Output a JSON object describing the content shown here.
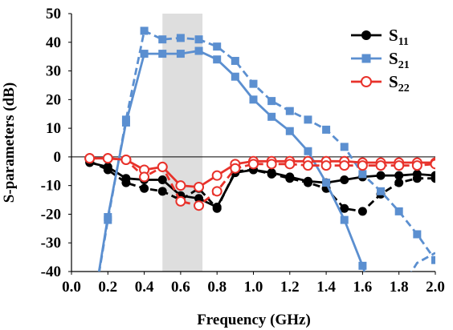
{
  "chart_data": {
    "type": "line",
    "xlabel": "Frequency (GHz)",
    "ylabel": "S-parameters (dB)",
    "xlim": [
      0.0,
      2.0
    ],
    "ylim": [
      -40,
      50
    ],
    "x_ticks": [
      "0.0",
      "0.2",
      "0.4",
      "0.6",
      "0.8",
      "1.0",
      "1.2",
      "1.4",
      "1.6",
      "1.8",
      "2.0"
    ],
    "y_ticks": [
      "-40",
      "-30",
      "-20",
      "-10",
      "0",
      "10",
      "20",
      "30",
      "40",
      "50"
    ],
    "legend_position": "top-right",
    "shaded_band": {
      "x_start": 0.5,
      "x_end": 0.72
    },
    "series": [
      {
        "name": "S11",
        "legend_main": "S",
        "legend_sub": "11",
        "color": "#000000",
        "marker": "filled-circle",
        "solid": {
          "x": [
            0.1,
            0.2,
            0.3,
            0.4,
            0.5,
            0.6,
            0.7,
            0.8,
            0.9,
            1.0,
            1.1,
            1.2,
            1.3,
            1.4,
            1.5,
            1.6,
            1.7,
            1.8,
            1.9,
            2.0
          ],
          "y": [
            -2.0,
            -3.5,
            -7.5,
            -8.0,
            -8.0,
            -13.5,
            -14.5,
            -17.5,
            -5.5,
            -4.5,
            -5.5,
            -7.0,
            -8.5,
            -9.0,
            -8.0,
            -7.0,
            -6.5,
            -6.5,
            -6.0,
            -6.5
          ]
        },
        "dashed": {
          "x": [
            0.1,
            0.2,
            0.3,
            0.4,
            0.5,
            0.6,
            0.7,
            0.8,
            0.9,
            1.0,
            1.1,
            1.2,
            1.3,
            1.4,
            1.5,
            1.6,
            1.7,
            1.8,
            1.9,
            2.0
          ],
          "y": [
            -1.5,
            -4.5,
            -9.0,
            -11.0,
            -12.0,
            -15.0,
            -11.0,
            -18.0,
            -5.0,
            -4.5,
            -6.0,
            -7.5,
            -9.0,
            -11.0,
            -18.0,
            -19.0,
            -13.0,
            -9.0,
            -7.5,
            -7.5
          ]
        }
      },
      {
        "name": "S21",
        "legend_main": "S",
        "legend_sub": "21",
        "color": "#5b8fd0",
        "marker": "filled-square",
        "solid": {
          "x": [
            0.1,
            0.2,
            0.3,
            0.4,
            0.5,
            0.6,
            0.7,
            0.8,
            0.9,
            1.0,
            1.1,
            1.2,
            1.3,
            1.4,
            1.5,
            1.6,
            1.65
          ],
          "y": [
            -60,
            -21,
            12,
            36,
            36,
            36,
            37,
            34,
            28,
            20,
            14,
            9,
            2,
            -9,
            -22,
            -38,
            -48
          ]
        },
        "dashed": {
          "x": [
            0.1,
            0.2,
            0.3,
            0.4,
            0.5,
            0.6,
            0.7,
            0.8,
            0.9,
            1.0,
            1.1,
            1.2,
            1.3,
            1.4,
            1.5,
            1.6,
            1.7,
            1.8,
            1.9,
            2.0
          ],
          "y": [
            -60,
            -22,
            13,
            44,
            41,
            41.5,
            41,
            38.5,
            33.5,
            25.5,
            19.5,
            16,
            13,
            9.5,
            3.5,
            -6,
            -12,
            -19,
            -27,
            -36
          ]
        },
        "extra_segment": {
          "x": [
            1.85,
            1.9,
            2.0
          ],
          "y": [
            -42,
            -37,
            -33.5
          ]
        }
      },
      {
        "name": "S22",
        "legend_main": "S",
        "legend_sub": "22",
        "color": "#e8322b",
        "marker": "open-circle",
        "solid": {
          "x": [
            0.1,
            0.2,
            0.3,
            0.4,
            0.5,
            0.6,
            0.7,
            0.8,
            0.9,
            1.0,
            1.1,
            1.2,
            1.3,
            1.4,
            1.5,
            1.6,
            1.7,
            1.8,
            1.9,
            2.0
          ],
          "y": [
            -0.5,
            -0.5,
            -1.0,
            -4.5,
            -3.5,
            -10.0,
            -10.5,
            -6.5,
            -2.5,
            -1.5,
            -1.5,
            -1.5,
            -1.5,
            -1.5,
            -1.5,
            -2.0,
            -2.0,
            -2.0,
            -2.0,
            -2.0
          ]
        },
        "dashed": {
          "x": [
            0.1,
            0.2,
            0.3,
            0.4,
            0.5,
            0.6,
            0.7,
            0.8,
            0.9,
            1.0,
            1.1,
            1.2,
            1.3,
            1.4,
            1.5,
            1.6,
            1.7,
            1.8,
            1.9,
            2.0
          ],
          "y": [
            -0.5,
            -0.5,
            -1.0,
            -7.0,
            -3.5,
            -15.5,
            -17.0,
            -12.0,
            -4.0,
            -2.5,
            -2.5,
            -2.5,
            -3.0,
            -3.0,
            -3.0,
            -3.0,
            -3.0,
            -3.0,
            -3.0,
            -2.5
          ]
        }
      }
    ]
  }
}
